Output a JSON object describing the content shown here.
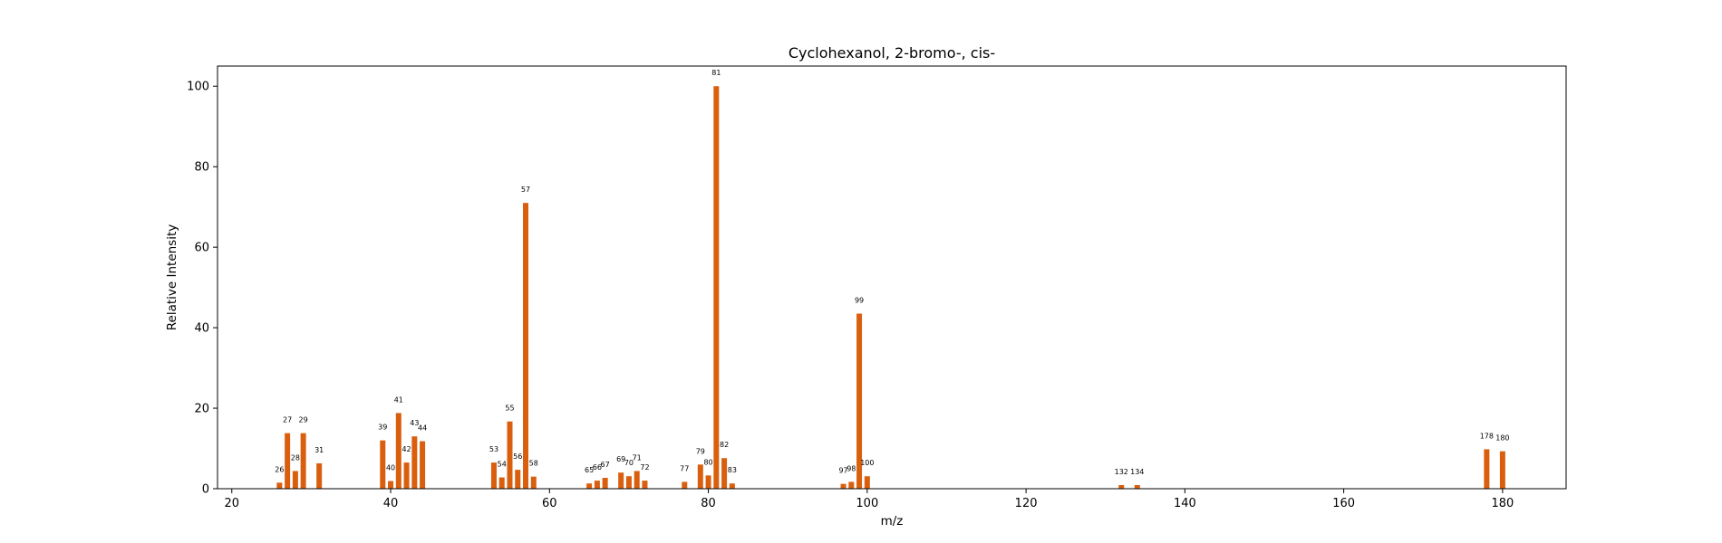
{
  "chart_data": {
    "type": "bar",
    "title": "Cyclohexanol, 2-bromo-, cis-",
    "xlabel": "m/z",
    "ylabel": "Relative Intensity",
    "xlim": [
      18.2,
      188
    ],
    "ylim": [
      0,
      105
    ],
    "xticks": [
      20,
      40,
      60,
      80,
      100,
      120,
      140,
      160,
      180
    ],
    "yticks": [
      0,
      20,
      40,
      60,
      80,
      100
    ],
    "grid": false,
    "bar_color": "#d95f0e",
    "x": [
      26,
      27,
      28,
      29,
      31,
      39,
      40,
      41,
      42,
      43,
      44,
      53,
      54,
      55,
      56,
      57,
      58,
      65,
      66,
      67,
      69,
      70,
      71,
      72,
      77,
      79,
      80,
      81,
      82,
      83,
      97,
      98,
      99,
      100,
      132,
      134,
      178,
      180
    ],
    "values": [
      1.5,
      13.8,
      4.4,
      13.8,
      6.3,
      12.0,
      1.9,
      18.8,
      6.5,
      13.0,
      11.8,
      6.5,
      2.8,
      16.7,
      4.7,
      71.0,
      3.0,
      1.3,
      2.0,
      2.7,
      4.0,
      3.1,
      4.4,
      2.0,
      1.7,
      6.0,
      3.3,
      100,
      7.6,
      1.3,
      1.2,
      1.7,
      43.5,
      3.1,
      0.9,
      0.9,
      9.8,
      9.3
    ],
    "labels": [
      "26",
      "27",
      "28",
      "29",
      "31",
      "39",
      "40",
      "41",
      "42",
      "43",
      "44",
      "53",
      "54",
      "55",
      "56",
      "57",
      "58",
      "65",
      "66",
      "67",
      "69",
      "70",
      "71",
      "72",
      "77",
      "79",
      "80",
      "81",
      "82",
      "83",
      "97",
      "98",
      "99",
      "100",
      "132",
      "134",
      "178",
      "180"
    ]
  }
}
